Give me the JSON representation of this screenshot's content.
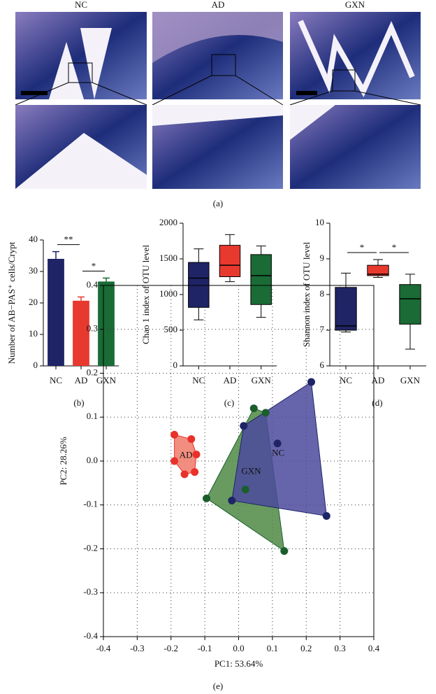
{
  "panel_a": {
    "labels": [
      "NC",
      "AD",
      "GXN"
    ],
    "caption": "(a)"
  },
  "chart_data": [
    {
      "type": "bar",
      "y_label": "Number of AB−PAS⁺ cells/Crypt",
      "categories": [
        "NC",
        "AD",
        "GXN"
      ],
      "values": [
        34,
        20.7,
        26.8
      ],
      "errors": [
        2.3,
        1.2,
        1.1
      ],
      "colors": [
        "#1f2466",
        "#e8392f",
        "#1a6b35"
      ],
      "ylim": [
        0,
        40
      ],
      "yticks": [
        0,
        10,
        20,
        30,
        40
      ],
      "annotations": [
        {
          "label": "**",
          "from": "NC",
          "to": "AD"
        },
        {
          "label": "*",
          "from": "AD",
          "to": "GXN"
        }
      ],
      "caption": "(b)"
    },
    {
      "type": "box",
      "y_label": "Chao 1 index of OTU level",
      "categories": [
        "NC",
        "AD",
        "GXN"
      ],
      "boxes": [
        {
          "min": 645,
          "q1": 820,
          "median": 1230,
          "q3": 1450,
          "max": 1640
        },
        {
          "min": 1180,
          "q1": 1250,
          "median": 1410,
          "q3": 1690,
          "max": 1840
        },
        {
          "min": 680,
          "q1": 860,
          "median": 1265,
          "q3": 1560,
          "max": 1680
        }
      ],
      "colors": [
        "#1f2466",
        "#e8392f",
        "#1a6b35"
      ],
      "ylim": [
        0,
        2000
      ],
      "yticks": [
        0,
        500,
        1000,
        1500,
        2000
      ],
      "annotations": [],
      "caption": "(c)"
    },
    {
      "type": "box",
      "y_label": "Shannon index of OTU level",
      "categories": [
        "NC",
        "AD",
        "GXN"
      ],
      "boxes": [
        {
          "min": 6.95,
          "q1": 7.0,
          "median": 7.12,
          "q3": 8.2,
          "max": 8.6
        },
        {
          "min": 8.48,
          "q1": 8.53,
          "median": 8.57,
          "q3": 8.82,
          "max": 8.98
        },
        {
          "min": 6.47,
          "q1": 7.17,
          "median": 7.88,
          "q3": 8.28,
          "max": 8.57
        }
      ],
      "colors": [
        "#1f2466",
        "#e8392f",
        "#1a6b35"
      ],
      "ylim": [
        6,
        10
      ],
      "yticks": [
        6,
        7,
        8,
        9,
        10
      ],
      "annotations": [
        {
          "label": "*",
          "from": "NC",
          "to": "AD"
        },
        {
          "label": "*",
          "from": "AD",
          "to": "GXN"
        }
      ],
      "caption": "(d)"
    },
    {
      "type": "scatter",
      "x_label": "PC1: 53.64%",
      "y_label": "PC2: 28.26%",
      "grid": true,
      "xlim": [
        -0.4,
        0.4
      ],
      "ylim": [
        -0.4,
        0.4
      ],
      "xticks": [
        -0.4,
        -0.3,
        -0.2,
        -0.1,
        {
          "value": 0,
          "label": "0.0"
        },
        0.1,
        0.2,
        0.3,
        0.4
      ],
      "yticks": [
        -0.4,
        -0.3,
        -0.2,
        -0.1,
        {
          "value": 0,
          "label": "0.0"
        },
        0.1,
        0.2,
        0.3,
        0.4
      ],
      "series": [
        {
          "name": "AD",
          "color": "#e8312a",
          "hull_color": "#f07a68",
          "x": [
            -0.19,
            -0.14,
            -0.125,
            -0.13,
            -0.16,
            -0.19
          ],
          "y": [
            0.06,
            0.05,
            0.015,
            -0.025,
            -0.03,
            0.0
          ]
        },
        {
          "name": "GXN",
          "color": "#1a5e2c",
          "hull_color": "#4f8a45",
          "x": [
            -0.095,
            0.045,
            0.08,
            0.135,
            0.02
          ],
          "y": [
            -0.085,
            0.12,
            0.11,
            -0.205,
            -0.065
          ]
        },
        {
          "name": "NC",
          "color": "#1f2466",
          "hull_color": "#4b4a9c",
          "x": [
            -0.02,
            0.015,
            0.215,
            0.26,
            0.115
          ],
          "y": [
            -0.09,
            0.08,
            0.18,
            -0.125,
            0.04
          ]
        }
      ],
      "caption": "(e)"
    }
  ]
}
